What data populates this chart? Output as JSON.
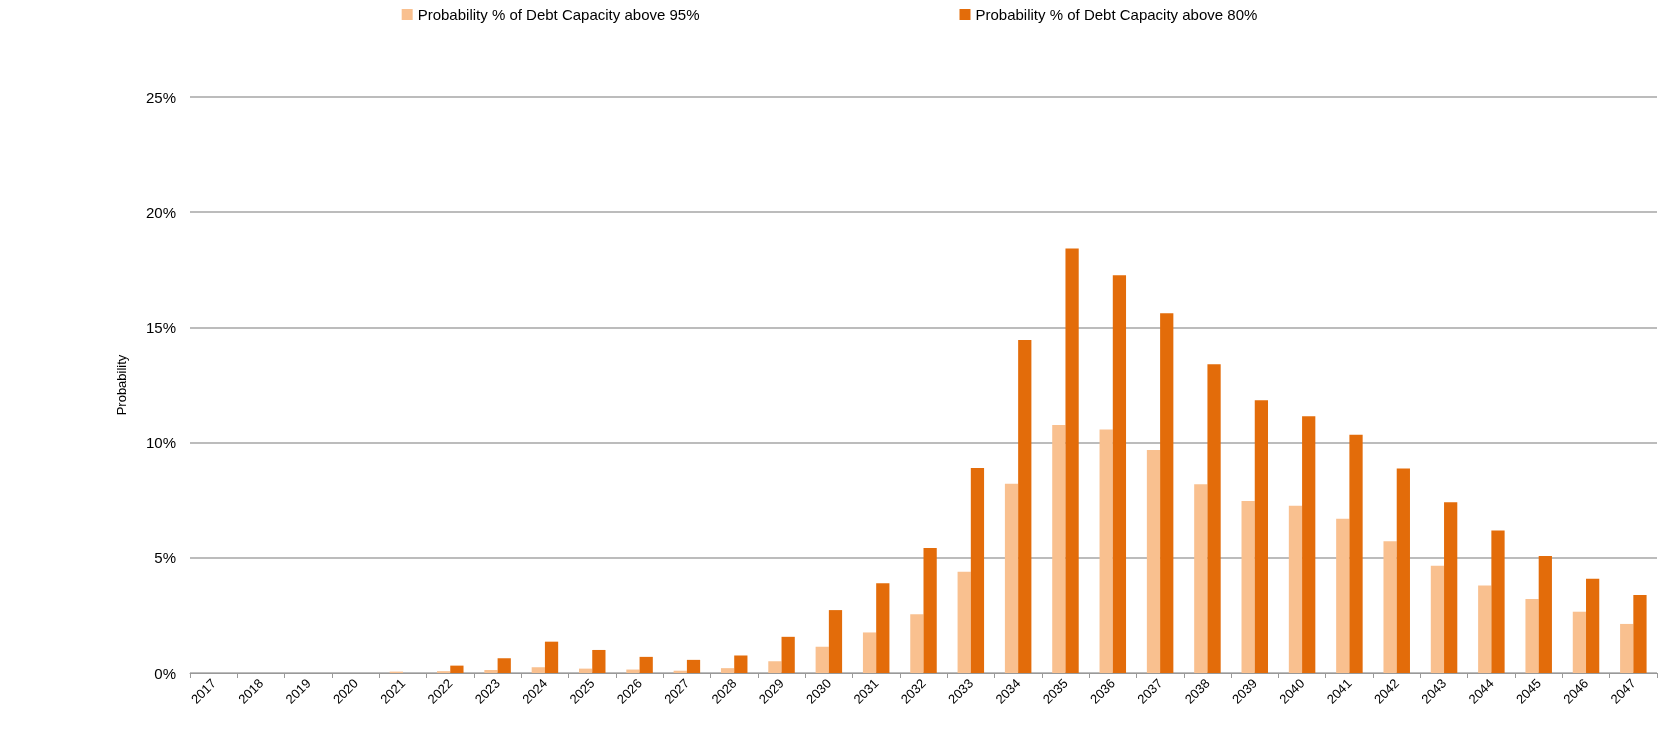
{
  "chart_data": {
    "type": "bar",
    "ylabel": "Probability",
    "categories": [
      "2017",
      "2018",
      "2019",
      "2020",
      "2021",
      "2022",
      "2023",
      "2024",
      "2025",
      "2026",
      "2027",
      "2028",
      "2029",
      "2030",
      "2031",
      "2032",
      "2033",
      "2034",
      "2035",
      "2036",
      "2037",
      "2038",
      "2039",
      "2040",
      "2041",
      "2042",
      "2043",
      "2044",
      "2045",
      "2046",
      "2047"
    ],
    "series": [
      {
        "name": "Probability % of Debt Capacity above 95%",
        "color": "#f9c08f",
        "values": [
          0,
          0,
          0,
          0,
          0.06,
          0.08,
          0.13,
          0.25,
          0.19,
          0.15,
          0.1,
          0.21,
          0.51,
          1.14,
          1.76,
          2.55,
          4.39,
          8.21,
          10.76,
          10.57,
          9.68,
          8.19,
          7.47,
          7.26,
          6.69,
          5.72,
          4.66,
          3.8,
          3.21,
          2.66,
          2.13
        ]
      },
      {
        "name": "Probability % of Debt Capacity above 80%",
        "color": "#e36c0a",
        "values": [
          0,
          0,
          0,
          0,
          0,
          0.32,
          0.64,
          1.36,
          1.0,
          0.7,
          0.57,
          0.76,
          1.57,
          2.73,
          3.9,
          5.42,
          8.9,
          14.45,
          18.42,
          17.26,
          15.61,
          13.4,
          11.84,
          11.14,
          10.34,
          8.88,
          7.41,
          6.18,
          5.08,
          4.09,
          3.38
        ]
      }
    ],
    "ylim": [
      0,
      25
    ],
    "yticks": [
      {
        "value": 0,
        "label": "0%"
      },
      {
        "value": 5,
        "label": "5%"
      },
      {
        "value": 10,
        "label": "10%"
      },
      {
        "value": 15,
        "label": "15%"
      },
      {
        "value": 20,
        "label": "20%"
      },
      {
        "value": 25,
        "label": "25%"
      }
    ],
    "grid": "y",
    "legend": "top"
  }
}
